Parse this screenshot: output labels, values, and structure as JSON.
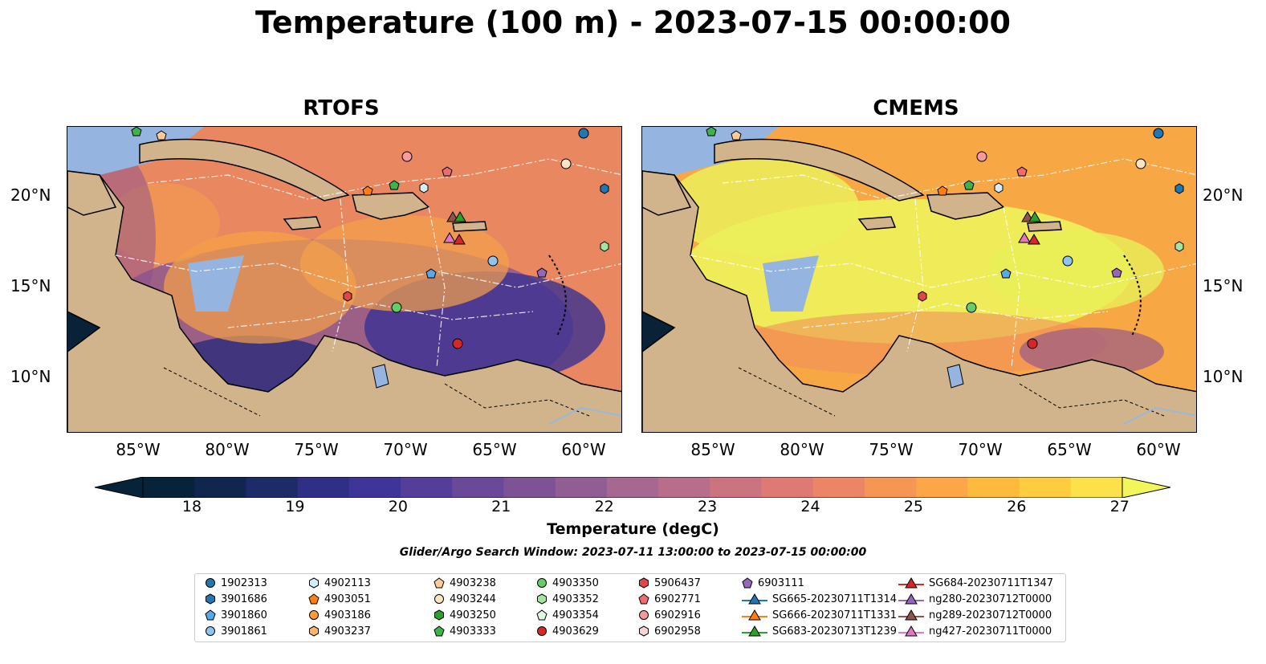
{
  "title": "Temperature (100 m) - 2023-07-15 00:00:00",
  "panels": [
    {
      "title": "RTOFS"
    },
    {
      "title": "CMEMS"
    }
  ],
  "x_ticks": [
    "85°W",
    "80°W",
    "75°W",
    "70°W",
    "65°W",
    "60°W"
  ],
  "y_ticks": [
    "20°N",
    "15°N",
    "10°N"
  ],
  "colorbar": {
    "label": "Temperature (degC)",
    "ticks": [
      "18",
      "19",
      "20",
      "21",
      "22",
      "23",
      "24",
      "25",
      "26",
      "27"
    ],
    "colors": [
      "#06233a",
      "#10264f",
      "#1d2b69",
      "#302f86",
      "#3f3598",
      "#543e9a",
      "#6a4a98",
      "#7d5396",
      "#915e94",
      "#a66891",
      "#b86e8a",
      "#cb7480",
      "#de7a73",
      "#ec8565",
      "#f59655",
      "#fba747",
      "#fdba3c",
      "#fdcd3f",
      "#fde14a"
    ],
    "extend_low": "#06233a",
    "extend_high": "#f2f759"
  },
  "window_text": "Glider/Argo Search Window: 2023-07-11 13:00:00 to 2023-07-15 00:00:00",
  "legend": [
    {
      "label": "1902313",
      "marker": "circle",
      "color": "#1f77b4"
    },
    {
      "label": "3901686",
      "marker": "hexagon",
      "color": "#1f77b4"
    },
    {
      "label": "3901860",
      "marker": "pentagon",
      "color": "#5aa9e6"
    },
    {
      "label": "3901861",
      "marker": "circle",
      "color": "#8dc5f0"
    },
    {
      "label": "4902113",
      "marker": "hexagon",
      "color": "#d6ecfb"
    },
    {
      "label": "4903051",
      "marker": "pentagon",
      "color": "#ff7f0e"
    },
    {
      "label": "4903186",
      "marker": "circle",
      "color": "#ff9c3a"
    },
    {
      "label": "4903237",
      "marker": "hexagon",
      "color": "#ffb366"
    },
    {
      "label": "4903238",
      "marker": "pentagon",
      "color": "#ffcc99"
    },
    {
      "label": "4903244",
      "marker": "circle",
      "color": "#ffe4c4"
    },
    {
      "label": "4903250",
      "marker": "hexagon",
      "color": "#2ca02c"
    },
    {
      "label": "4903333",
      "marker": "pentagon",
      "color": "#3cb44b"
    },
    {
      "label": "4903350",
      "marker": "circle",
      "color": "#66cc66"
    },
    {
      "label": "4903352",
      "marker": "hexagon",
      "color": "#a3e4a3"
    },
    {
      "label": "4903354",
      "marker": "pentagon",
      "color": "#e0f7e0"
    },
    {
      "label": "4903629",
      "marker": "circle",
      "color": "#d62728"
    },
    {
      "label": "5906437",
      "marker": "hexagon",
      "color": "#e0474c"
    },
    {
      "label": "6902771",
      "marker": "pentagon",
      "color": "#ee6b6e"
    },
    {
      "label": "6902916",
      "marker": "circle",
      "color": "#f79a9a"
    },
    {
      "label": "6902958",
      "marker": "hexagon",
      "color": "#fcd3d3"
    },
    {
      "label": "6903111",
      "marker": "pentagon",
      "color": "#9467bd"
    },
    {
      "label": "SG665-20230711T1314",
      "marker": "triangle-line",
      "color": "#1f77b4"
    },
    {
      "label": "SG666-20230711T1331",
      "marker": "triangle-line",
      "color": "#ff7f0e"
    },
    {
      "label": "SG683-20230713T1239",
      "marker": "triangle-line",
      "color": "#2ca02c"
    },
    {
      "label": "SG684-20230711T1347",
      "marker": "triangle-line",
      "color": "#d62728"
    },
    {
      "label": "ng280-20230712T0000",
      "marker": "triangle-line",
      "color": "#9467bd"
    },
    {
      "label": "ng289-20230712T0000",
      "marker": "triangle-line",
      "color": "#8c564b"
    },
    {
      "label": "ng427-20230711T0000",
      "marker": "triangle-line",
      "color": "#e377c2"
    }
  ]
}
